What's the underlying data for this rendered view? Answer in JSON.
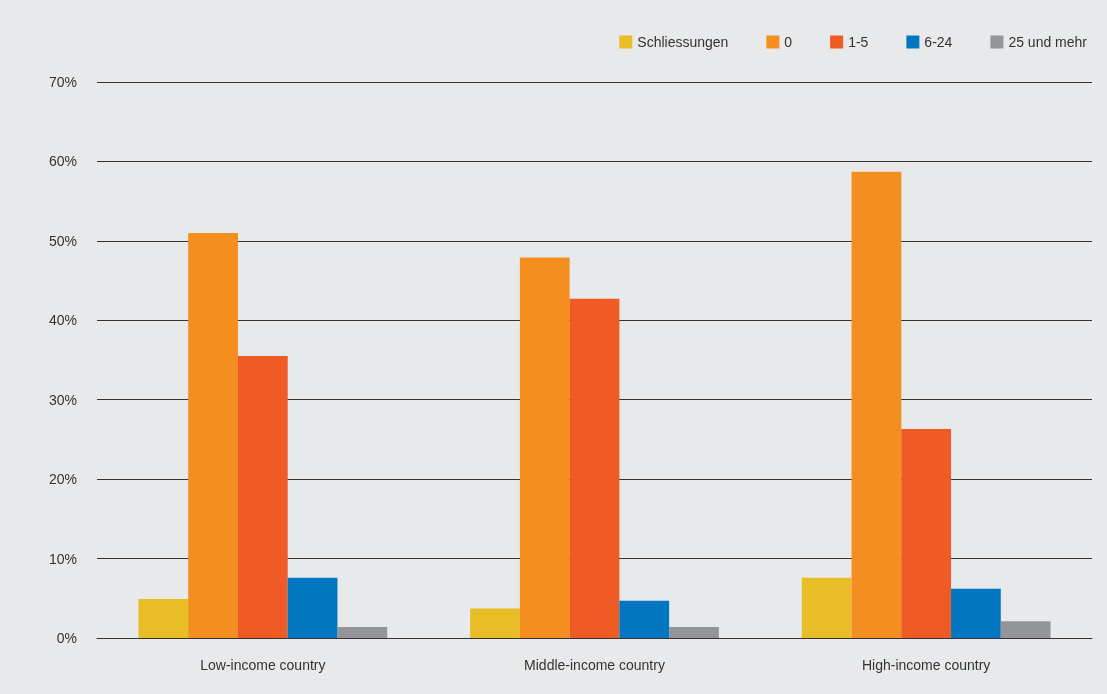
{
  "chart_data": {
    "type": "bar",
    "categories": [
      "Low-income country",
      "Middle-income country",
      "High-income country"
    ],
    "series": [
      {
        "name": "Schliessungen",
        "color": "#e8bd25",
        "values": [
          4.9,
          3.7,
          7.6
        ]
      },
      {
        "name": "0",
        "color": "#f48f1f",
        "values": [
          51.0,
          47.9,
          58.7
        ]
      },
      {
        "name": "1-5",
        "color": "#f05a24",
        "values": [
          35.5,
          42.7,
          26.3
        ]
      },
      {
        "name": "6-24",
        "color": "#0077c0",
        "values": [
          7.6,
          4.7,
          6.2
        ]
      },
      {
        "name": "25 und mehr",
        "color": "#939598",
        "values": [
          1.4,
          1.4,
          2.1
        ]
      }
    ],
    "ylim": [
      0,
      70
    ],
    "yticks": [
      {
        "value": 0,
        "label": "0%"
      },
      {
        "value": 10,
        "label": "10%"
      },
      {
        "value": 20,
        "label": "20%"
      },
      {
        "value": 30,
        "label": "30%"
      },
      {
        "value": 40,
        "label": "40%"
      },
      {
        "value": 50,
        "label": "50%"
      },
      {
        "value": 60,
        "label": "60%"
      },
      {
        "value": 70,
        "label": "70%"
      }
    ],
    "grid": "y",
    "legend": "top right"
  }
}
